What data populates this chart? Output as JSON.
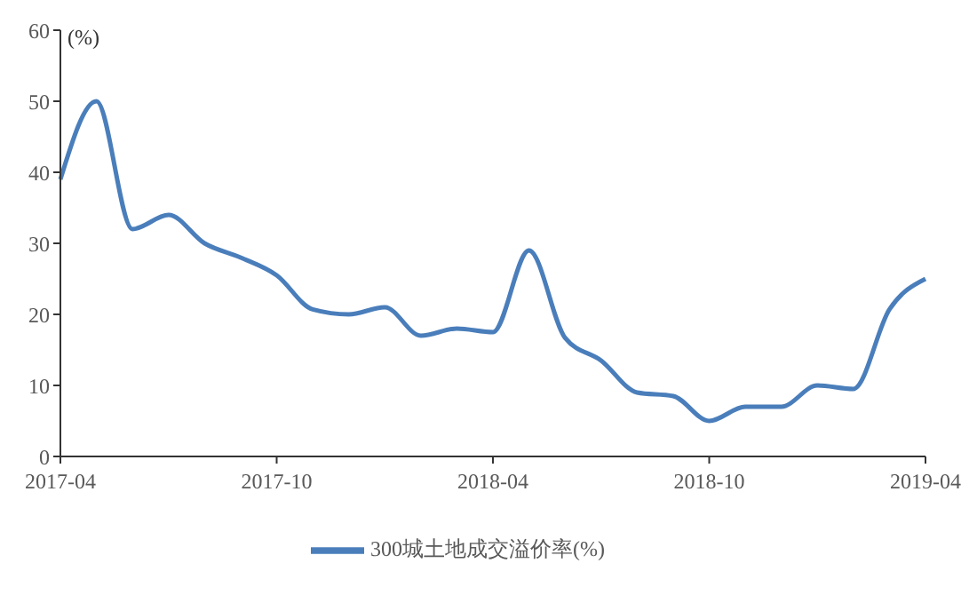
{
  "chart_data": {
    "type": "line",
    "ylabel": "(%)",
    "categories": [
      "2017-04",
      null,
      null,
      null,
      null,
      null,
      "2017-10",
      null,
      null,
      null,
      null,
      null,
      "2018-04",
      null,
      null,
      null,
      null,
      null,
      "2018-10",
      null,
      null,
      null,
      null,
      null,
      "2019-04"
    ],
    "series": [
      {
        "name": "300城土地成交溢价率(%)",
        "color": "#4a7ebb",
        "values": [
          39,
          50,
          32,
          34,
          30,
          28,
          25.5,
          20.7,
          20,
          21,
          17,
          18,
          17.5,
          29,
          16.7,
          13.5,
          9,
          8.5,
          5,
          7,
          7,
          10,
          9.5,
          20.7,
          25
        ]
      }
    ],
    "ylim": [
      0,
      60
    ],
    "yticks": [
      0,
      10,
      20,
      30,
      40,
      50,
      60
    ],
    "grid": false,
    "legend": "bottom",
    "marker": "none",
    "line_style": "solid"
  }
}
